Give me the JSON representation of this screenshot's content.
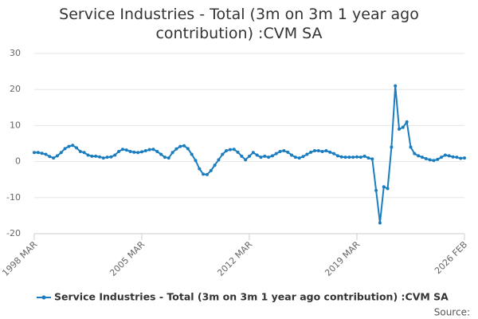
{
  "chart_data": {
    "type": "line",
    "title": "Service Industries - Total (3m on 3m 1 year ago contribution) :CVM SA",
    "source": "Source:",
    "categories": [
      "1998 MAR",
      null,
      null,
      null,
      null,
      null,
      null,
      null,
      null,
      null,
      null,
      null,
      null,
      null,
      null,
      null,
      null,
      null,
      null,
      null,
      null,
      null,
      null,
      null,
      null,
      null,
      null,
      null,
      "2005 MAR",
      null,
      null,
      null,
      null,
      null,
      null,
      null,
      null,
      null,
      null,
      null,
      null,
      null,
      null,
      null,
      null,
      null,
      null,
      null,
      null,
      null,
      null,
      null,
      null,
      null,
      null,
      null,
      "2012 MAR",
      null,
      null,
      null,
      null,
      null,
      null,
      null,
      null,
      null,
      null,
      null,
      null,
      null,
      null,
      null,
      null,
      null,
      null,
      null,
      null,
      null,
      null,
      null,
      null,
      null,
      null,
      null,
      "2019 MAR",
      null,
      null,
      null,
      null,
      null,
      null,
      null,
      null,
      null,
      null,
      null,
      null,
      null,
      null,
      null,
      null,
      null,
      null,
      null,
      null,
      null,
      null,
      null,
      null,
      null,
      null,
      null,
      "2026 FEB"
    ],
    "series": [
      {
        "name": "Service Industries - Total (3m on 3m 1 year ago contribution) :CVM SA",
        "color": "#1a7dbf",
        "values": [
          2.5,
          2.5,
          2.3,
          2.0,
          1.4,
          1.0,
          1.6,
          2.5,
          3.6,
          4.2,
          4.5,
          3.8,
          2.8,
          2.5,
          1.8,
          1.5,
          1.5,
          1.3,
          1.0,
          1.2,
          1.3,
          1.8,
          2.8,
          3.4,
          3.2,
          2.8,
          2.6,
          2.5,
          2.7,
          3.0,
          3.3,
          3.4,
          2.8,
          2.0,
          1.2,
          1.0,
          2.5,
          3.5,
          4.2,
          4.4,
          3.6,
          2.0,
          0.3,
          -2.0,
          -3.5,
          -3.6,
          -2.5,
          -1.0,
          0.5,
          2.0,
          3.0,
          3.3,
          3.4,
          2.6,
          1.5,
          0.5,
          1.5,
          2.5,
          1.8,
          1.2,
          1.5,
          1.2,
          1.6,
          2.2,
          2.8,
          3.0,
          2.6,
          1.8,
          1.2,
          1.0,
          1.4,
          2.0,
          2.6,
          3.0,
          3.0,
          2.8,
          3.0,
          2.6,
          2.2,
          1.6,
          1.3,
          1.2,
          1.2,
          1.2,
          1.3,
          1.2,
          1.5,
          1.0,
          0.7,
          -8.0,
          -17.0,
          -7.0,
          -7.5,
          4.0,
          21.0,
          9.0,
          9.5,
          11.0,
          4.0,
          2.2,
          1.6,
          1.2,
          0.8,
          0.5,
          0.3,
          0.6,
          1.2,
          1.8,
          1.6,
          1.3,
          1.2,
          0.9,
          1.0
        ]
      }
    ],
    "ylim": [
      -20,
      30
    ],
    "yticks": [
      -20,
      -10,
      0,
      10,
      20,
      30
    ],
    "grid": true
  }
}
